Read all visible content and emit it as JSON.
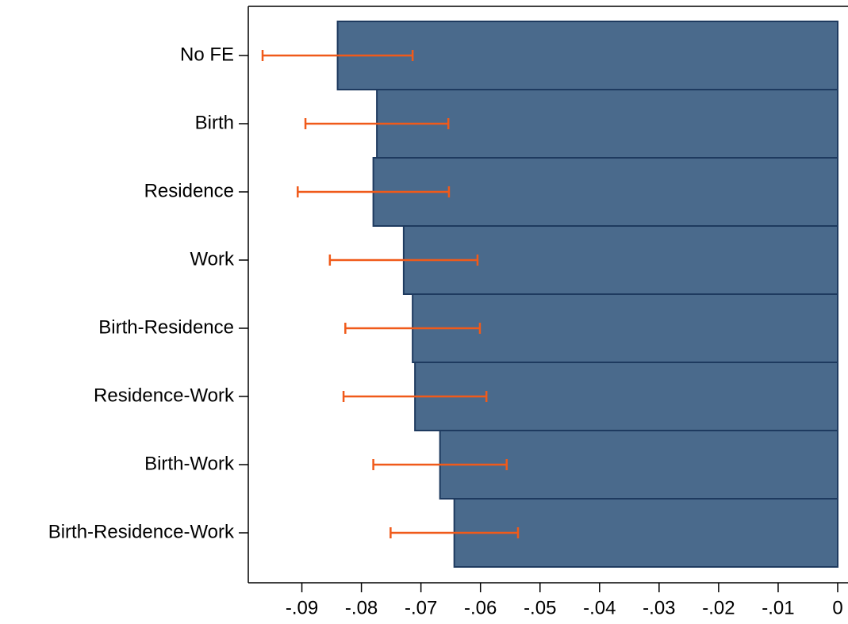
{
  "chart_data": {
    "type": "hbar",
    "categories": [
      "No FE",
      "Birth",
      "Residence",
      "Work",
      "Birth-Residence",
      "Residence-Work",
      "Birth-Work",
      "Birth-Residence-Work"
    ],
    "values": [
      -0.084,
      -0.0774,
      -0.078,
      -0.0729,
      -0.0714,
      -0.071,
      -0.0668,
      -0.0644
    ],
    "errors": [
      0.0126,
      0.012,
      0.0127,
      0.0124,
      0.0113,
      0.012,
      0.0112,
      0.0107
    ],
    "color": "#4a6a8c",
    "edgecolor": "#1e3a5f",
    "error_color": "#f05a1a",
    "xlim": [
      -0.099,
      0
    ],
    "xticks": [
      {
        "value": -0.09,
        "label": "-.09"
      },
      {
        "value": -0.08,
        "label": "-.08"
      },
      {
        "value": -0.07,
        "label": "-.07"
      },
      {
        "value": -0.06,
        "label": "-.06"
      },
      {
        "value": -0.05,
        "label": "-.05"
      },
      {
        "value": -0.04,
        "label": "-.04"
      },
      {
        "value": -0.03,
        "label": "-.03"
      },
      {
        "value": -0.02,
        "label": "-.02"
      },
      {
        "value": -0.01,
        "label": "-.01"
      },
      0
    ]
  }
}
